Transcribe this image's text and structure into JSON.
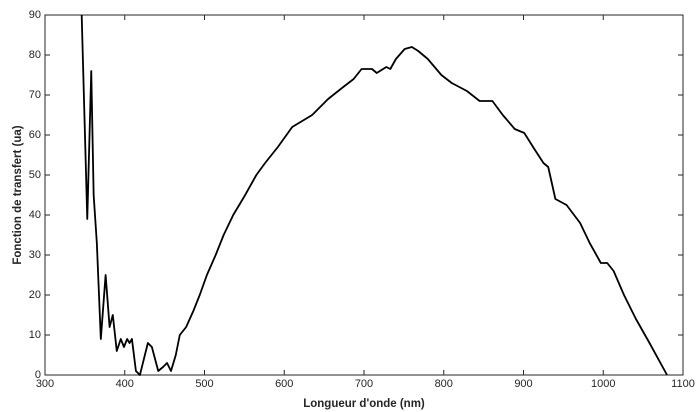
{
  "chart_data": {
    "type": "line",
    "x_label": "Longueur d'onde (nm)",
    "y_label": "Fonction de transfert (ua)",
    "x": [
      346,
      353,
      358,
      361,
      365,
      370,
      376,
      381,
      385,
      390,
      395,
      399,
      403,
      406,
      409,
      414,
      419,
      429,
      434,
      442,
      448,
      453,
      458,
      464,
      469,
      477,
      486,
      494,
      503,
      514,
      524,
      536,
      551,
      565,
      576,
      592,
      610,
      635,
      655,
      674,
      687,
      697,
      710,
      716,
      728,
      733,
      740,
      751,
      760,
      768,
      780,
      797,
      810,
      829,
      845,
      861,
      874,
      889,
      901,
      912,
      925,
      931,
      940,
      954,
      971,
      983,
      997,
      1005,
      1013,
      1026,
      1041,
      1058,
      1080
    ],
    "series": [
      {
        "name": "Fonction de transfert",
        "color": "#000000",
        "values": [
          90,
          39,
          76,
          45,
          33,
          9,
          25,
          12,
          15,
          6,
          9,
          7,
          9,
          8,
          9,
          1,
          0,
          8,
          7,
          1,
          2,
          3,
          1,
          5,
          10,
          12,
          16,
          20,
          25,
          30,
          35,
          40,
          45,
          50,
          53,
          57,
          62,
          65,
          69,
          72,
          74,
          76.5,
          76.5,
          75.5,
          77,
          76.5,
          79,
          81.5,
          82,
          81,
          79,
          75,
          73,
          71,
          68.5,
          68.5,
          65,
          61.5,
          60.5,
          57,
          53,
          52,
          44,
          42.5,
          38,
          33,
          28,
          28,
          26,
          20,
          14,
          8,
          0
        ]
      }
    ],
    "xlim": [
      300,
      1100
    ],
    "ylim": [
      0,
      90
    ],
    "xticks": [
      300,
      400,
      500,
      600,
      700,
      800,
      900,
      1000,
      1100
    ],
    "yticks": [
      0,
      10,
      20,
      30,
      40,
      50,
      60,
      70,
      80,
      90
    ]
  }
}
